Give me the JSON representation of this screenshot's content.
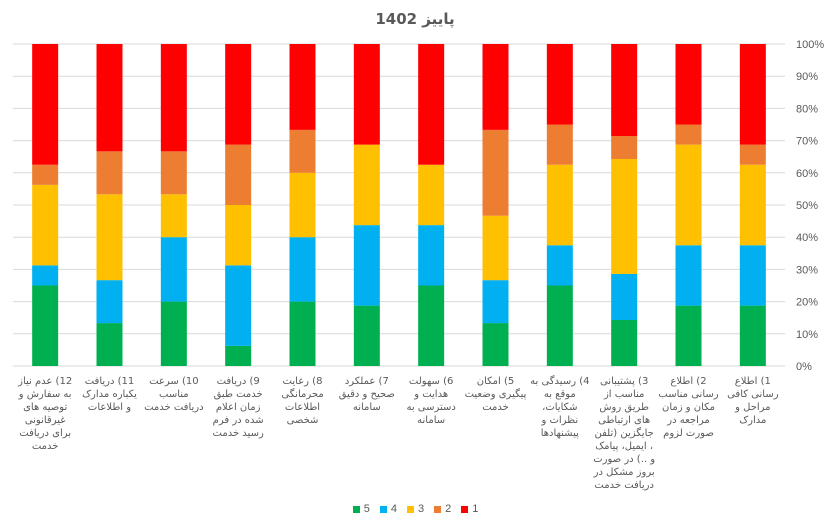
{
  "chart_data": {
    "type": "bar",
    "stacked": true,
    "percent_stacked": true,
    "title": "پاییز 1402",
    "xlabel": "",
    "ylabel": "",
    "ylim": [
      0,
      100
    ],
    "yticks": [
      "0%",
      "10%",
      "20%",
      "30%",
      "40%",
      "50%",
      "60%",
      "70%",
      "80%",
      "90%",
      "100%"
    ],
    "grid": true,
    "legend_position": "bottom",
    "category_order": "right-to-left",
    "categories": [
      "1) اطلاع رسانی کافی مراحل و مدارک",
      "2) اطلاع رسانی مناسب مکان و زمان مراجعه در صورت لزوم",
      "3) پشتیبانی مناسب از طریق روش های ارتباطی جایگزین (تلفن ، ایمیل، پیامک و ..) در صورت بروز مشکل در دریافت خدمت",
      "4) رسیدگی به موقع به شکایات، نظرات و پیشنهادها",
      "5) امکان پیگیری وضعیت خدمت",
      "6) سهولت هدایت و دسترسی به سامانه",
      "7) عملکرد صحیح و دقیق سامانه",
      "8) رعایت محرمانگی اطلاعات شخصی",
      "9) دریافت خدمت طبق زمان اعلام شده در فرم رسید خدمت",
      "10) سرعت مناسب دریافت خدمت",
      "11) دریافت یکباره مدارک و اطلاعات",
      "12) عدم نیاز به سفارش و توصیه های غیرقانونی برای دریافت خدمت"
    ],
    "series": [
      {
        "name": "5",
        "color": "#00B050",
        "values": [
          18.75,
          18.75,
          14.29,
          25,
          13.33,
          25,
          18.75,
          20,
          6.25,
          20,
          13.33,
          25
        ]
      },
      {
        "name": "4",
        "color": "#00B0F0",
        "values": [
          18.75,
          18.75,
          14.29,
          12.5,
          13.33,
          18.75,
          25,
          20,
          25,
          20,
          13.33,
          6.25
        ]
      },
      {
        "name": "3",
        "color": "#FFC000",
        "values": [
          25,
          31.25,
          35.71,
          25,
          20,
          18.75,
          25,
          20,
          18.75,
          13.33,
          26.67,
          25
        ]
      },
      {
        "name": "2",
        "color": "#ED7D31",
        "values": [
          6.25,
          6.25,
          7.14,
          12.5,
          26.67,
          0,
          0,
          13.33,
          18.75,
          13.33,
          13.33,
          6.25
        ]
      },
      {
        "name": "1",
        "color": "#FF0000",
        "values": [
          31.25,
          25,
          28.57,
          25,
          26.67,
          37.5,
          31.25,
          26.67,
          31.25,
          33.33,
          33.33,
          37.5
        ]
      }
    ]
  }
}
